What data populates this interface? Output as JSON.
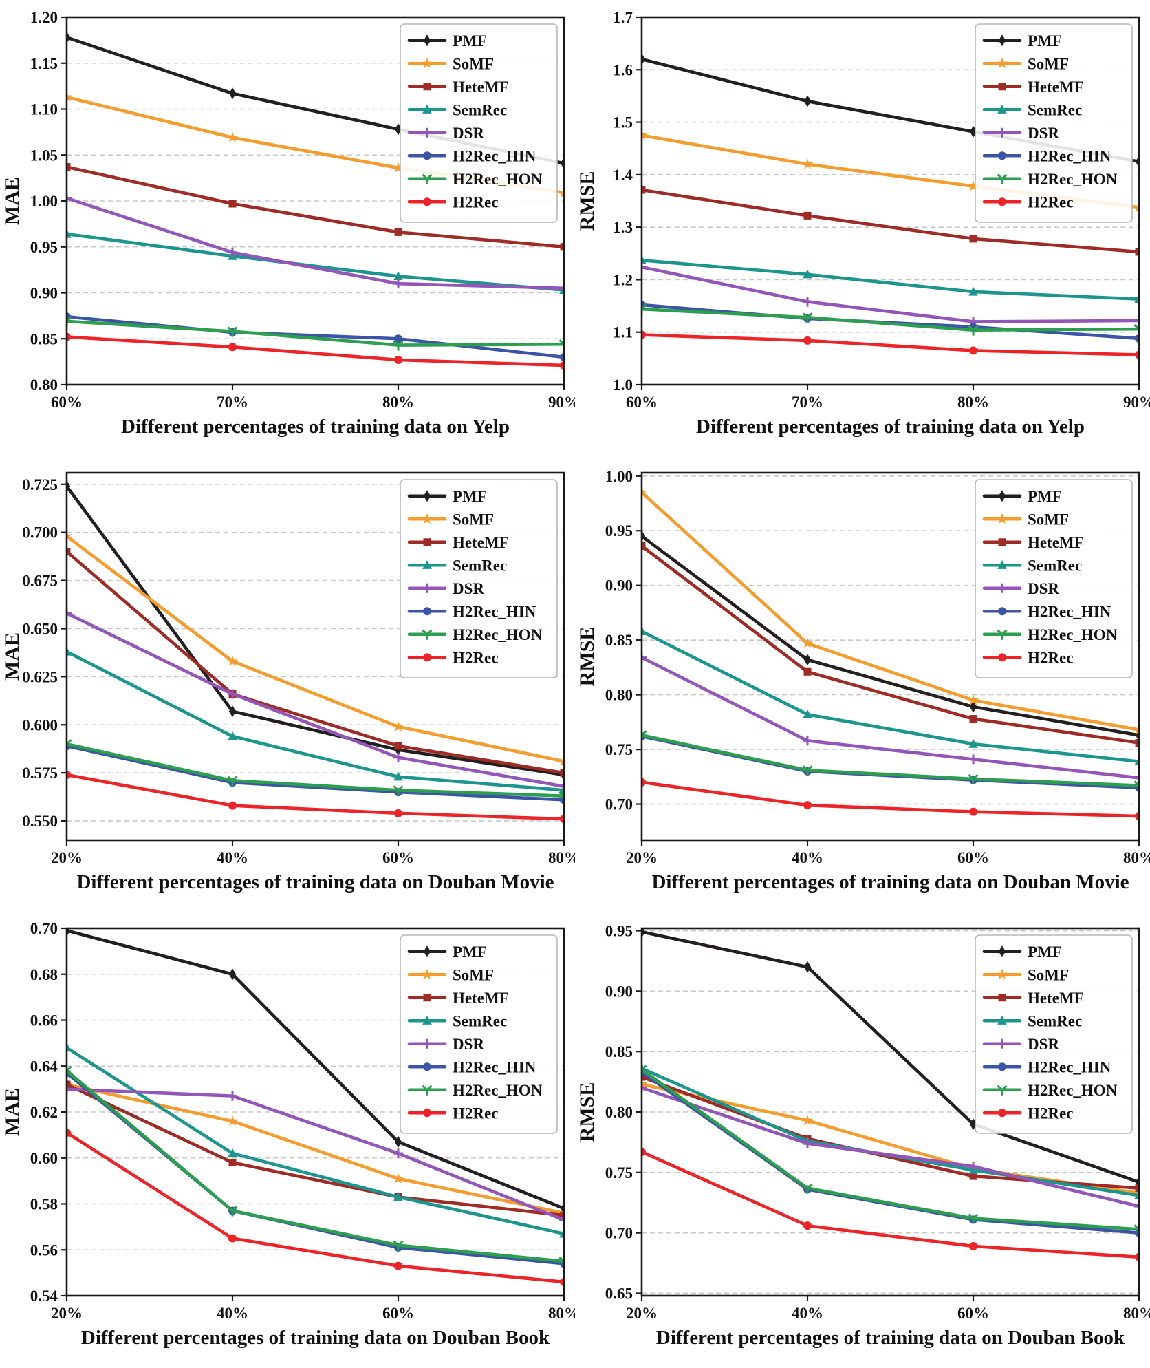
{
  "figure": {
    "background": "#ffffff",
    "axis_color": "#1a1a1a",
    "grid_color": "#c9c9c9",
    "legend_border": "#b8b8b8"
  },
  "series_styles": {
    "PMF": {
      "color": "#231f20",
      "marker": "diamond"
    },
    "SoMF": {
      "color": "#f59c2f",
      "marker": "star"
    },
    "HeteMF": {
      "color": "#9e2b25",
      "marker": "square"
    },
    "SemRec": {
      "color": "#1c958e",
      "marker": "triangle-up"
    },
    "DSR": {
      "color": "#9455b9",
      "marker": "plus"
    },
    "H2Rec_HIN": {
      "color": "#3b54a5",
      "marker": "circle"
    },
    "H2Rec_HON": {
      "color": "#2d9e50",
      "marker": "tri-down"
    },
    "H2Rec": {
      "color": "#ec2427",
      "marker": "circle"
    }
  },
  "legend_labels": [
    "PMF",
    "SoMF",
    "HeteMF",
    "SemRec",
    "DSR",
    "H2Rec_HIN",
    "H2Rec_HON",
    "H2Rec"
  ],
  "chart_data": [
    {
      "type": "line",
      "title": "",
      "xlabel": "Different percentages of training data on Yelp",
      "ylabel": "MAE",
      "categories": [
        "60%",
        "70%",
        "80%",
        "90%"
      ],
      "ylim": [
        0.8,
        1.2
      ],
      "yticks": {
        "min": 0.8,
        "max": 1.2,
        "step": 0.05,
        "decimals": 2
      },
      "grid": true,
      "legend_position": "top-right",
      "series": [
        {
          "name": "PMF",
          "values": [
            1.178,
            1.117,
            1.078,
            1.041
          ]
        },
        {
          "name": "SoMF",
          "values": [
            1.113,
            1.069,
            1.036,
            1.009
          ]
        },
        {
          "name": "HeteMF",
          "values": [
            1.037,
            0.997,
            0.966,
            0.95
          ]
        },
        {
          "name": "SemRec",
          "values": [
            0.964,
            0.94,
            0.918,
            0.903
          ]
        },
        {
          "name": "DSR",
          "values": [
            1.003,
            0.944,
            0.91,
            0.905
          ]
        },
        {
          "name": "H2Rec_HIN",
          "values": [
            0.874,
            0.857,
            0.85,
            0.83
          ]
        },
        {
          "name": "H2Rec_HON",
          "values": [
            0.869,
            0.858,
            0.843,
            0.844
          ]
        },
        {
          "name": "H2Rec",
          "values": [
            0.852,
            0.841,
            0.827,
            0.821
          ]
        }
      ]
    },
    {
      "type": "line",
      "title": "",
      "xlabel": "Different percentages of training data on Yelp",
      "ylabel": "RMSE",
      "categories": [
        "60%",
        "70%",
        "80%",
        "90%"
      ],
      "ylim": [
        1.0,
        1.7
      ],
      "yticks": {
        "min": 1.0,
        "max": 1.7,
        "step": 0.1,
        "decimals": 1
      },
      "grid": true,
      "legend_position": "top-right",
      "series": [
        {
          "name": "PMF",
          "values": [
            1.62,
            1.54,
            1.482,
            1.425
          ]
        },
        {
          "name": "SoMF",
          "values": [
            1.475,
            1.42,
            1.378,
            1.338
          ]
        },
        {
          "name": "HeteMF",
          "values": [
            1.371,
            1.322,
            1.278,
            1.253
          ]
        },
        {
          "name": "SemRec",
          "values": [
            1.237,
            1.21,
            1.177,
            1.163
          ]
        },
        {
          "name": "DSR",
          "values": [
            1.224,
            1.158,
            1.12,
            1.122
          ]
        },
        {
          "name": "H2Rec_HIN",
          "values": [
            1.152,
            1.126,
            1.11,
            1.088
          ]
        },
        {
          "name": "H2Rec_HON",
          "values": [
            1.144,
            1.128,
            1.104,
            1.106
          ]
        },
        {
          "name": "H2Rec",
          "values": [
            1.095,
            1.084,
            1.065,
            1.057
          ]
        }
      ]
    },
    {
      "type": "line",
      "title": "",
      "xlabel": "Different percentages of training data on Douban Movie",
      "ylabel": "MAE",
      "categories": [
        "20%",
        "40%",
        "60%",
        "80%"
      ],
      "ylim": [
        0.54,
        0.731
      ],
      "yticks": {
        "min": 0.55,
        "max": 0.725,
        "step": 0.025,
        "decimals": 3
      },
      "grid": true,
      "legend_position": "top-right",
      "series": [
        {
          "name": "PMF",
          "values": [
            0.724,
            0.607,
            0.587,
            0.574
          ]
        },
        {
          "name": "SoMF",
          "values": [
            0.698,
            0.633,
            0.599,
            0.581
          ]
        },
        {
          "name": "HeteMF",
          "values": [
            0.69,
            0.616,
            0.589,
            0.575
          ]
        },
        {
          "name": "SemRec",
          "values": [
            0.638,
            0.594,
            0.573,
            0.566
          ]
        },
        {
          "name": "DSR",
          "values": [
            0.658,
            0.616,
            0.583,
            0.568
          ]
        },
        {
          "name": "H2Rec_HIN",
          "values": [
            0.589,
            0.57,
            0.565,
            0.561
          ]
        },
        {
          "name": "H2Rec_HON",
          "values": [
            0.59,
            0.571,
            0.566,
            0.563
          ]
        },
        {
          "name": "H2Rec",
          "values": [
            0.574,
            0.558,
            0.554,
            0.551
          ]
        }
      ]
    },
    {
      "type": "line",
      "title": "",
      "xlabel": "Different percentages of training data on Douban Movie",
      "ylabel": "RMSE",
      "categories": [
        "20%",
        "40%",
        "60%",
        "80%"
      ],
      "ylim": [
        0.667,
        1.003
      ],
      "yticks": {
        "min": 0.7,
        "max": 1.0,
        "step": 0.05,
        "decimals": 2
      },
      "grid": true,
      "legend_position": "top-right",
      "series": [
        {
          "name": "PMF",
          "values": [
            0.945,
            0.832,
            0.789,
            0.763
          ]
        },
        {
          "name": "SoMF",
          "values": [
            0.985,
            0.847,
            0.795,
            0.768
          ]
        },
        {
          "name": "HeteMF",
          "values": [
            0.936,
            0.821,
            0.778,
            0.756
          ]
        },
        {
          "name": "SemRec",
          "values": [
            0.858,
            0.782,
            0.755,
            0.739
          ]
        },
        {
          "name": "DSR",
          "values": [
            0.834,
            0.758,
            0.741,
            0.724
          ]
        },
        {
          "name": "H2Rec_HIN",
          "values": [
            0.762,
            0.73,
            0.722,
            0.715
          ]
        },
        {
          "name": "H2Rec_HON",
          "values": [
            0.763,
            0.731,
            0.723,
            0.717
          ]
        },
        {
          "name": "H2Rec",
          "values": [
            0.72,
            0.699,
            0.693,
            0.689
          ]
        }
      ]
    },
    {
      "type": "line",
      "title": "",
      "xlabel": "Different percentages of training data on Douban Book",
      "ylabel": "MAE",
      "categories": [
        "20%",
        "40%",
        "60%",
        "80%"
      ],
      "ylim": [
        0.54,
        0.7
      ],
      "yticks": {
        "min": 0.54,
        "max": 0.7,
        "step": 0.02,
        "decimals": 2
      },
      "grid": true,
      "legend_position": "top-right",
      "series": [
        {
          "name": "PMF",
          "values": [
            0.699,
            0.68,
            0.607,
            0.578
          ]
        },
        {
          "name": "SoMF",
          "values": [
            0.632,
            0.616,
            0.591,
            0.576
          ]
        },
        {
          "name": "HeteMF",
          "values": [
            0.632,
            0.598,
            0.583,
            0.575
          ]
        },
        {
          "name": "SemRec",
          "values": [
            0.648,
            0.602,
            0.583,
            0.567
          ]
        },
        {
          "name": "DSR",
          "values": [
            0.63,
            0.627,
            0.602,
            0.573
          ]
        },
        {
          "name": "H2Rec_HIN",
          "values": [
            0.637,
            0.577,
            0.561,
            0.554
          ]
        },
        {
          "name": "H2Rec_HON",
          "values": [
            0.638,
            0.577,
            0.562,
            0.555
          ]
        },
        {
          "name": "H2Rec",
          "values": [
            0.611,
            0.565,
            0.553,
            0.546
          ]
        }
      ]
    },
    {
      "type": "line",
      "title": "",
      "xlabel": "Different percentages of training data on Douban Book",
      "ylabel": "RMSE",
      "categories": [
        "20%",
        "40%",
        "60%",
        "80%"
      ],
      "ylim": [
        0.648,
        0.952
      ],
      "yticks": {
        "min": 0.65,
        "max": 0.95,
        "step": 0.05,
        "decimals": 2
      },
      "grid": true,
      "legend_position": "top-right",
      "series": [
        {
          "name": "PMF",
          "values": [
            0.949,
            0.92,
            0.79,
            0.742
          ]
        },
        {
          "name": "SoMF",
          "values": [
            0.823,
            0.793,
            0.753,
            0.733
          ]
        },
        {
          "name": "HeteMF",
          "values": [
            0.829,
            0.778,
            0.747,
            0.737
          ]
        },
        {
          "name": "SemRec",
          "values": [
            0.836,
            0.776,
            0.752,
            0.731
          ]
        },
        {
          "name": "DSR",
          "values": [
            0.82,
            0.774,
            0.755,
            0.722
          ]
        },
        {
          "name": "H2Rec_HIN",
          "values": [
            0.833,
            0.736,
            0.711,
            0.7
          ]
        },
        {
          "name": "H2Rec_HON",
          "values": [
            0.835,
            0.737,
            0.712,
            0.703
          ]
        },
        {
          "name": "H2Rec",
          "values": [
            0.767,
            0.706,
            0.689,
            0.68
          ]
        }
      ]
    }
  ]
}
